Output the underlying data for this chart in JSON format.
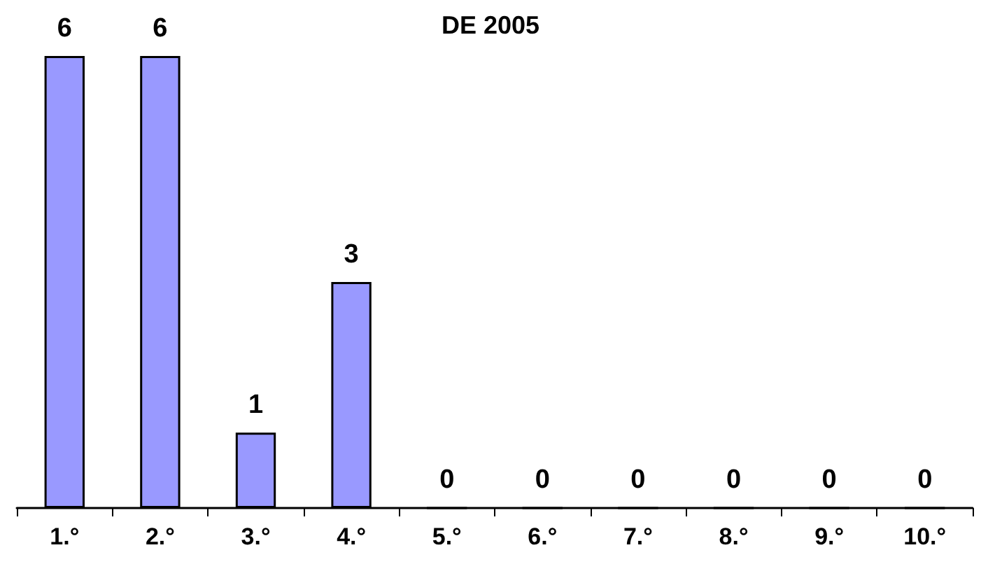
{
  "chart_data": {
    "type": "bar",
    "title": "DE 2005",
    "categories": [
      "1.°",
      "2.°",
      "3.°",
      "4.°",
      "5.°",
      "6.°",
      "7.°",
      "8.°",
      "9.°",
      "10.°"
    ],
    "values": [
      6,
      6,
      1,
      3,
      0,
      0,
      0,
      0,
      0,
      0
    ],
    "color": "#9999ff",
    "data_labels": true
  }
}
